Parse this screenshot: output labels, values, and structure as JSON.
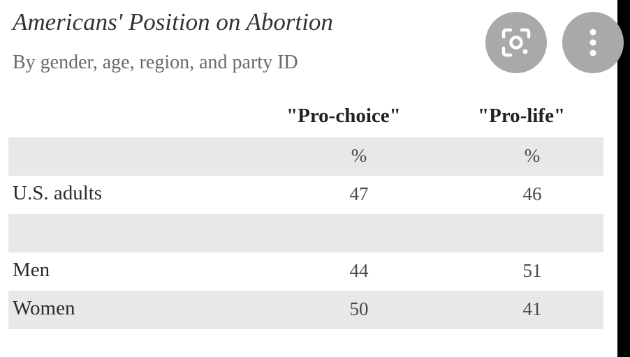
{
  "chart_data": {
    "type": "table",
    "title": "Americans' Position on Abortion",
    "subtitle": "By gender, age, region, and party ID",
    "columns": [
      "\"Pro-choice\"",
      "\"Pro-life\""
    ],
    "unit_row": [
      "%",
      "%"
    ],
    "rows": [
      {
        "label": "U.S. adults",
        "values": [
          "47",
          "46"
        ]
      },
      {
        "label": "",
        "values": [
          "",
          ""
        ]
      },
      {
        "label": "Men",
        "values": [
          "44",
          "51"
        ]
      },
      {
        "label": "Women",
        "values": [
          "50",
          "41"
        ]
      }
    ]
  },
  "overlay": {
    "lens_icon": "google-lens-icon",
    "more_icon": "more-vertical-icon",
    "button_color": "#a9a9a9"
  }
}
